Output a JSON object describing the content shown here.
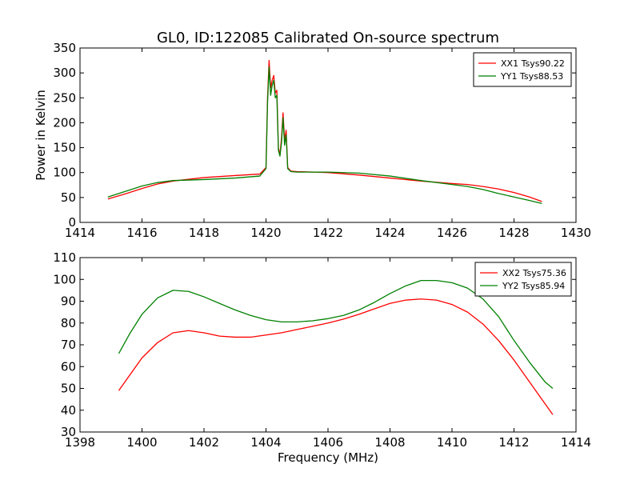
{
  "chart_data": [
    {
      "type": "line",
      "title": "GL0, ID:122085 Calibrated On-source spectrum",
      "xlabel": "",
      "ylabel": "Power in Kelvin",
      "xlim": [
        1414,
        1430
      ],
      "ylim": [
        0,
        350
      ],
      "xticks": [
        1414,
        1416,
        1418,
        1420,
        1422,
        1424,
        1426,
        1428,
        1430
      ],
      "yticks": [
        0,
        50,
        100,
        150,
        200,
        250,
        300,
        350
      ],
      "legend": "top-right",
      "grid": false,
      "series": [
        {
          "name": "XX1 Tsys90.22",
          "color": "#ff0000",
          "x": [
            1414.9,
            1415.5,
            1416.0,
            1416.5,
            1417.0,
            1418.0,
            1419.0,
            1419.8,
            1420.0,
            1420.05,
            1420.1,
            1420.15,
            1420.2,
            1420.25,
            1420.3,
            1420.35,
            1420.4,
            1420.45,
            1420.5,
            1420.55,
            1420.6,
            1420.65,
            1420.7,
            1420.8,
            1421.0,
            1422.0,
            1423.0,
            1424.0,
            1425.0,
            1426.0,
            1426.5,
            1427.0,
            1427.5,
            1428.0,
            1428.5,
            1428.9
          ],
          "y": [
            47,
            58,
            68,
            77,
            83,
            90,
            94,
            97,
            110,
            250,
            325,
            270,
            285,
            295,
            260,
            265,
            150,
            135,
            170,
            220,
            165,
            185,
            110,
            103,
            102,
            100,
            95,
            89,
            83,
            78,
            76,
            72,
            67,
            60,
            51,
            42
          ]
        },
        {
          "name": "YY1 Tsys88.53",
          "color": "#008000",
          "x": [
            1414.9,
            1415.5,
            1416.0,
            1416.5,
            1417.0,
            1418.0,
            1419.0,
            1419.8,
            1420.0,
            1420.05,
            1420.1,
            1420.15,
            1420.2,
            1420.25,
            1420.3,
            1420.35,
            1420.4,
            1420.45,
            1420.5,
            1420.55,
            1420.6,
            1420.65,
            1420.7,
            1420.8,
            1421.0,
            1422.0,
            1423.0,
            1424.0,
            1425.0,
            1426.0,
            1426.5,
            1427.0,
            1427.5,
            1428.0,
            1428.5,
            1428.9
          ],
          "y": [
            51,
            63,
            73,
            80,
            84,
            86,
            89,
            93,
            108,
            240,
            312,
            255,
            275,
            285,
            250,
            255,
            145,
            133,
            160,
            210,
            155,
            175,
            108,
            102,
            101,
            101,
            99,
            93,
            84,
            76,
            72,
            66,
            58,
            51,
            44,
            38
          ]
        }
      ]
    },
    {
      "type": "line",
      "title": "",
      "xlabel": "Frequency (MHz)",
      "ylabel": "",
      "xlim": [
        1398,
        1414
      ],
      "ylim": [
        30,
        110
      ],
      "xticks": [
        1398,
        1400,
        1402,
        1404,
        1406,
        1408,
        1410,
        1412,
        1414
      ],
      "yticks": [
        30,
        40,
        50,
        60,
        70,
        80,
        90,
        100,
        110
      ],
      "legend": "top-right",
      "grid": false,
      "series": [
        {
          "name": "XX2 Tsys75.36",
          "color": "#ff0000",
          "x": [
            1399.25,
            1399.6,
            1400.0,
            1400.5,
            1401.0,
            1401.5,
            1402.0,
            1402.5,
            1403.0,
            1403.5,
            1404.0,
            1404.5,
            1405.0,
            1405.5,
            1406.0,
            1406.5,
            1407.0,
            1407.5,
            1408.0,
            1408.5,
            1409.0,
            1409.5,
            1410.0,
            1410.5,
            1411.0,
            1411.5,
            1412.0,
            1412.5,
            1413.0,
            1413.25
          ],
          "y": [
            49,
            56,
            64,
            71,
            75.5,
            76.5,
            75.5,
            74,
            73.5,
            73.5,
            74.5,
            75.5,
            77,
            78.5,
            80,
            81.8,
            84,
            86.5,
            89,
            90.5,
            91,
            90.5,
            88.5,
            85,
            79.5,
            72,
            63,
            53,
            43,
            38
          ]
        },
        {
          "name": "YY2 Tsys85.94",
          "color": "#008000",
          "x": [
            1399.25,
            1399.6,
            1400.0,
            1400.5,
            1401.0,
            1401.5,
            1402.0,
            1402.5,
            1403.0,
            1403.5,
            1404.0,
            1404.5,
            1405.0,
            1405.5,
            1406.0,
            1406.5,
            1407.0,
            1407.5,
            1408.0,
            1408.5,
            1409.0,
            1409.5,
            1410.0,
            1410.5,
            1411.0,
            1411.5,
            1412.0,
            1412.5,
            1413.0,
            1413.25
          ],
          "y": [
            66,
            75,
            84,
            91.5,
            95,
            94.5,
            92,
            89,
            86,
            83.5,
            81.5,
            80.5,
            80.5,
            81,
            82,
            83.5,
            86,
            89.5,
            93.5,
            97,
            99.5,
            99.5,
            98.5,
            96,
            91,
            83,
            72,
            62,
            53,
            50
          ]
        }
      ]
    }
  ]
}
